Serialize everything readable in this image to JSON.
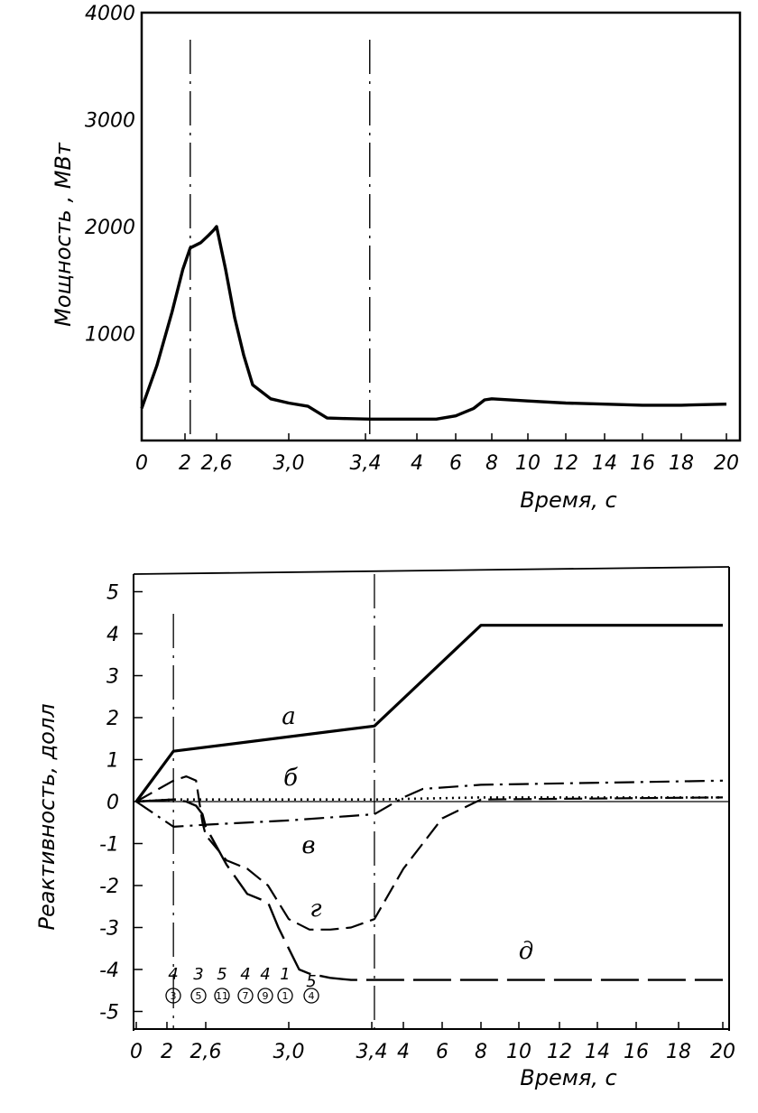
{
  "chart_data": [
    {
      "type": "line",
      "ylabel": "Мощность , МВт",
      "xlabel": "Время, с",
      "ylim": [
        0,
        4000
      ],
      "yticks": [
        "4000",
        "3000",
        "2000",
        "1000"
      ],
      "xticks": [
        "0",
        "2",
        "2,6",
        "3,0",
        "3,4",
        "4",
        "6",
        "8",
        "10",
        "12",
        "14",
        "16",
        "18",
        "20"
      ],
      "x_tick_times": [
        0,
        2,
        2.6,
        3.0,
        3.4,
        4,
        6,
        8,
        10,
        12,
        14,
        16,
        18,
        20
      ],
      "vlines": [
        2.1,
        3.45
      ],
      "series": [
        {
          "style": "solid",
          "x": [
            0,
            0.7,
            1.4,
            1.9,
            2.1,
            2.3,
            2.45,
            2.55,
            2.6,
            2.65,
            2.7,
            2.75,
            2.8,
            2.9,
            3.0,
            3.1,
            3.2,
            3.3,
            3.45,
            4.0,
            5.0,
            6.0,
            7.0,
            7.6,
            8.0,
            10,
            12,
            14,
            16,
            18,
            20
          ],
          "y": [
            300,
            700,
            1200,
            1600,
            1800,
            1850,
            1920,
            1970,
            2000,
            1600,
            1150,
            800,
            520,
            390,
            350,
            320,
            210,
            205,
            200,
            200,
            200,
            230,
            300,
            380,
            390,
            370,
            350,
            340,
            330,
            330,
            340
          ]
        }
      ]
    },
    {
      "type": "line",
      "ylabel": "Реактивность, долл",
      "xlabel": "Время, с",
      "ylim": [
        -5,
        5
      ],
      "yticks": [
        "5",
        "4",
        "3",
        "2",
        "1",
        "0",
        "-1",
        "-2",
        "-3",
        "-4",
        "-5"
      ],
      "xticks": [
        "0",
        "2",
        "2,6",
        "3,0",
        "3,4",
        "4",
        "6",
        "8",
        "10",
        "12",
        "14",
        "16",
        "18",
        "20"
      ],
      "x_tick_times": [
        0,
        2,
        2.6,
        3.0,
        3.4,
        4,
        6,
        8,
        10,
        12,
        14,
        16,
        18,
        20
      ],
      "vlines": [
        2.1,
        3.45
      ],
      "series": [
        {
          "name": "а",
          "style": "solid",
          "x": [
            0,
            2.1,
            3.45,
            8.0,
            20
          ],
          "y": [
            0,
            1.2,
            1.8,
            4.2,
            4.2
          ]
        },
        {
          "name": "б",
          "style": "dotted",
          "x": [
            0,
            2.1,
            3.0,
            3.45,
            8,
            20
          ],
          "y": [
            0,
            0.05,
            0.05,
            0.05,
            0.1,
            0.1
          ]
        },
        {
          "name": "в",
          "style": "dashdot",
          "x": [
            0,
            2.1,
            2.6,
            3.0,
            3.45,
            4.0,
            5.0,
            8.0,
            20
          ],
          "y": [
            0,
            -0.6,
            -0.55,
            -0.45,
            -0.3,
            0.1,
            0.3,
            0.4,
            0.5
          ]
        },
        {
          "name": "г",
          "style": "dashed",
          "x": [
            0,
            2.1,
            2.3,
            2.45,
            2.55,
            2.6,
            2.7,
            2.8,
            2.9,
            3.0,
            3.1,
            3.2,
            3.3,
            3.45,
            4.0,
            6.0,
            8.0,
            20
          ],
          "y": [
            0,
            0.5,
            0.6,
            0.5,
            -0.5,
            -0.8,
            -1.4,
            -1.6,
            -2.0,
            -2.8,
            -3.05,
            -3.05,
            -3.0,
            -2.8,
            -1.6,
            -0.4,
            0.05,
            0.1
          ]
        },
        {
          "name": "д",
          "style": "longdash",
          "x": [
            0,
            2.1,
            2.3,
            2.45,
            2.55,
            2.6,
            2.7,
            2.8,
            2.9,
            2.95,
            3.0,
            3.05,
            3.1,
            3.2,
            3.3,
            3.45,
            8.0,
            20
          ],
          "y": [
            0,
            0.05,
            0.0,
            -0.1,
            -0.3,
            -0.6,
            -1.5,
            -2.2,
            -2.4,
            -3.0,
            -3.5,
            -4.0,
            -4.1,
            -4.2,
            -4.25,
            -4.25,
            -4.25,
            -4.25
          ]
        }
      ],
      "rod_numbers": [
        "4",
        "3",
        "5",
        "4",
        "4",
        "1",
        "5"
      ],
      "rod_circled": [
        "3",
        "5",
        "11",
        "7",
        "9",
        "1",
        "4"
      ]
    }
  ]
}
